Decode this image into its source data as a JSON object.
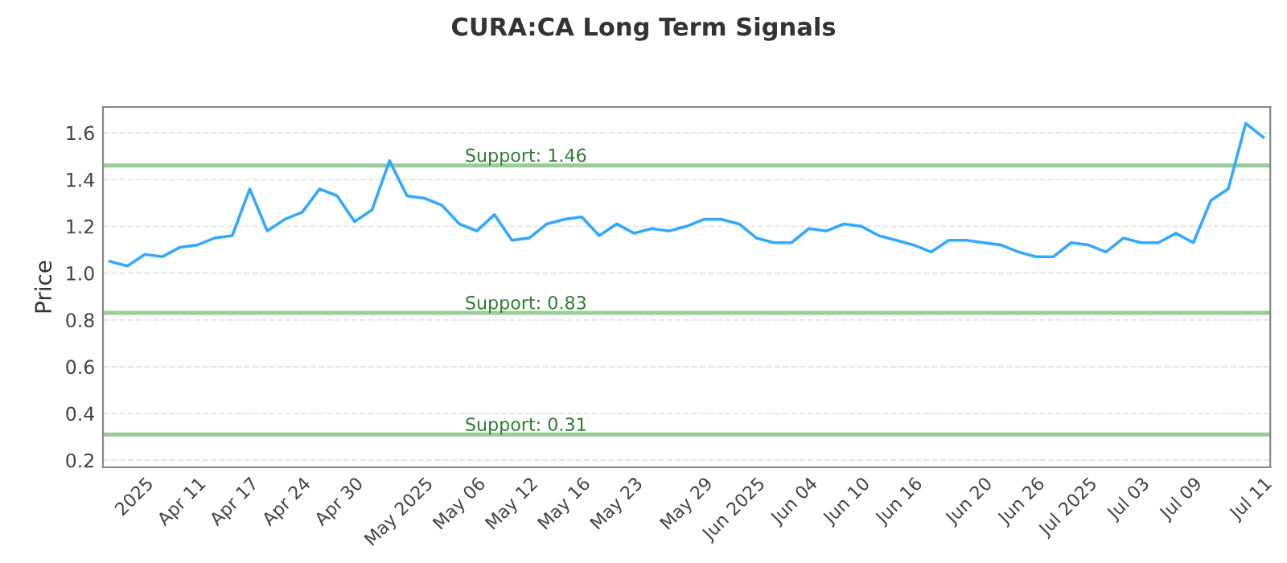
{
  "chart_data": {
    "type": "line",
    "title": "CURA:CA Long Term Signals",
    "ylabel": "Price",
    "categories": [
      null,
      null,
      "2025",
      null,
      null,
      "Apr 11",
      null,
      null,
      "Apr 17",
      null,
      null,
      "Apr 24",
      null,
      null,
      "Apr 30",
      null,
      null,
      null,
      "May 2025",
      null,
      null,
      "May 06",
      null,
      null,
      "May 12",
      null,
      null,
      "May 16",
      null,
      null,
      "May 23",
      null,
      null,
      null,
      "May 29",
      null,
      null,
      "Jun 2025",
      null,
      null,
      "Jun 04",
      null,
      null,
      "Jun 10",
      null,
      null,
      "Jun 16",
      null,
      null,
      null,
      "Jun 20",
      null,
      null,
      "Jun 26",
      null,
      null,
      "Jul 2025",
      null,
      null,
      "Jul 03",
      null,
      null,
      "Jul 09",
      null,
      null,
      null,
      "Jul 11"
    ],
    "series": [
      {
        "color": "#33aaff",
        "values": [
          1.05,
          1.03,
          1.08,
          1.07,
          1.11,
          1.12,
          1.15,
          1.16,
          1.36,
          1.18,
          1.23,
          1.26,
          1.36,
          1.33,
          1.22,
          1.27,
          1.48,
          1.33,
          1.32,
          1.29,
          1.21,
          1.18,
          1.25,
          1.14,
          1.15,
          1.21,
          1.23,
          1.24,
          1.16,
          1.21,
          1.17,
          1.19,
          1.18,
          1.2,
          1.23,
          1.23,
          1.21,
          1.15,
          1.13,
          1.13,
          1.19,
          1.18,
          1.21,
          1.2,
          1.16,
          1.14,
          1.12,
          1.09,
          1.14,
          1.14,
          1.13,
          1.12,
          1.09,
          1.07,
          1.07,
          1.13,
          1.12,
          1.09,
          1.15,
          1.13,
          1.13,
          1.17,
          1.13,
          1.31,
          1.36,
          1.64,
          1.58
        ]
      }
    ],
    "ylim": [
      0.17,
      1.71
    ],
    "yticks": [
      0.2,
      0.4,
      0.6,
      0.8,
      {
        "value": 1,
        "label": "1.0"
      },
      1.2,
      1.4,
      1.6
    ],
    "grid": "y",
    "marker": "none",
    "line_style": "solid",
    "ref_lines": [
      {
        "axis": "y",
        "value": 1.46,
        "label": "Support: 1.46",
        "color": "#99cc99"
      },
      {
        "axis": "y",
        "value": 0.83,
        "label": "Support: 0.83",
        "color": "#99cc99"
      },
      {
        "axis": "y",
        "value": 0.31,
        "label": "Support: 0.31",
        "color": "#99cc99"
      }
    ]
  }
}
